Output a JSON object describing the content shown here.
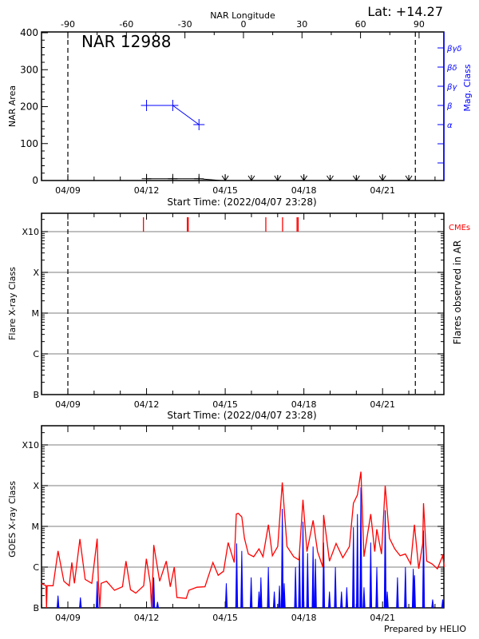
{
  "header": {
    "lat": "Lat: +14.27",
    "longitude_title": "NAR Longitude",
    "longitude_ticks": [
      "-90",
      "-60",
      "-30",
      "0",
      "30",
      "60",
      "90"
    ]
  },
  "chart_data": [
    {
      "type": "line",
      "title": "NAR 12988",
      "xlabel": "Start Time: (2022/04/07 23:28)",
      "ylabel": "NAR Area",
      "y2label": "Mag. Class",
      "ylim": [
        0,
        400
      ],
      "yticks": [
        "0",
        "100",
        "200",
        "300",
        "400"
      ],
      "xticks": [
        "04/09",
        "04/12",
        "04/15",
        "04/18",
        "04/21"
      ],
      "y2ticks": [
        "α",
        "β",
        "βγ",
        "βδ",
        "βγδ"
      ],
      "limb_lines": [
        "04/09 00:00",
        "04/22 06:00"
      ],
      "area": [
        {
          "date": "04/12 00:00",
          "value": 5
        },
        {
          "date": "04/13 00:00",
          "value": 5
        },
        {
          "date": "04/14 00:00",
          "value": 5
        },
        {
          "date": "04/14 20:00",
          "value": 0
        }
      ],
      "area_zero_arrows": [
        "04/15 00:00",
        "04/16 00:00",
        "04/17 00:00",
        "04/18 00:00",
        "04/19 00:00",
        "04/20 00:00",
        "04/21 00:00",
        "04/22 00:00"
      ],
      "mag_class": [
        {
          "date": "04/12 00:00",
          "class": "β"
        },
        {
          "date": "04/13 00:00",
          "class": "β"
        },
        {
          "date": "04/14 00:00",
          "class": "α"
        }
      ],
      "colors": {
        "area": "#000000",
        "mag_class": "#0000ff"
      }
    },
    {
      "type": "scatter",
      "xlabel": "Start Time: (2022/04/07 23:28)",
      "ylabel": "Flare X-ray Class",
      "y2label": "Flares observed in AR",
      "yticks": [
        "B",
        "C",
        "M",
        "X",
        "X10"
      ],
      "xticks": [
        "04/09",
        "04/12",
        "04/15",
        "04/18",
        "04/21"
      ],
      "limb_lines": [
        "04/09 00:00",
        "04/22 06:00"
      ],
      "cme_label": "CMEs",
      "cmes": [
        "04/11 21:10",
        "04/13 13:20",
        "04/13 14:10",
        "04/16 13:10",
        "04/17 04:30",
        "04/17 17:45",
        "04/17 18:45"
      ],
      "flares": [],
      "grid": true,
      "colors": {
        "cme": "#ff0000",
        "grid": "#999999"
      }
    },
    {
      "type": "line",
      "ylabel": "GOES X-ray Class",
      "yticks": [
        "B",
        "C",
        "M",
        "X",
        "X10"
      ],
      "xticks": [
        "04/09",
        "04/12",
        "04/15",
        "04/18",
        "04/21"
      ],
      "grid": true,
      "series": [
        {
          "color": "#ff0000",
          "points": [
            [
              "04/07 23:28",
              "B4.0"
            ],
            [
              "04/08 04:00",
              "B3.5"
            ],
            [
              "04/08 04:30",
              "B1.0"
            ],
            [
              "04/08 05:00",
              "B3.5"
            ],
            [
              "04/08 10:30",
              "B3.5"
            ],
            [
              "04/08 15:00",
              "C2.5"
            ],
            [
              "04/08 20:20",
              "B4.5"
            ],
            [
              "04/09 01:15",
              "B3.5"
            ],
            [
              "04/09 03:40",
              "C1.3"
            ],
            [
              "04/09 06:00",
              "B4.0"
            ],
            [
              "04/09 11:00",
              "C4.9"
            ],
            [
              "04/09 15:50",
              "B5.0"
            ],
            [
              "04/09 21:55",
              "B4.0"
            ],
            [
              "04/10 02:50",
              "C5.0"
            ],
            [
              "04/10 04:00",
              "B4.0"
            ],
            [
              "04/10 05:15",
              "B1.0"
            ],
            [
              "04/10 06:30",
              "B4.0"
            ],
            [
              "04/10 11:20",
              "B4.5"
            ],
            [
              "04/10 18:40",
              "B2.7"
            ],
            [
              "04/11 02:00",
              "B3.3"
            ],
            [
              "04/11 05:10",
              "C1.4"
            ],
            [
              "04/11 09:20",
              "B2.8"
            ],
            [
              "04/11 14:10",
              "B2.3"
            ],
            [
              "04/11 21:25",
              "B3.5"
            ],
            [
              "04/11 23:50",
              "C1.6"
            ],
            [
              "04/12 03:30",
              "B4.0"
            ],
            [
              "04/12 04:35",
              "B1.0"
            ],
            [
              "04/12 05:30",
              "B4.0"
            ],
            [
              "04/12 06:35",
              "C3.5"
            ],
            [
              "04/12 12:00",
              "B4.5"
            ],
            [
              "04/12 18:05",
              "C1.4"
            ],
            [
              "04/12 21:45",
              "B3.3"
            ],
            [
              "04/13 01:25",
              "C1.0"
            ],
            [
              "04/13 03:50",
              "B1.8"
            ],
            [
              "04/13 12:20",
              "B1.7"
            ],
            [
              "04/13 14:45",
              "B2.7"
            ],
            [
              "04/13 22:05",
              "B3.2"
            ],
            [
              "04/14 05:25",
              "B3.3"
            ],
            [
              "04/14 12:45",
              "C1.3"
            ],
            [
              "04/14 17:35",
              "B6.3"
            ],
            [
              "04/14 22:30",
              "B7.9"
            ],
            [
              "04/15 02:40",
              "C4.0"
            ],
            [
              "04/15 08:15",
              "C1.3"
            ],
            [
              "04/15 10:10",
              "M2.0"
            ],
            [
              "04/15 11:55",
              "M2.1"
            ],
            [
              "04/15 15:10",
              "M1.7"
            ],
            [
              "04/15 17:35",
              "C5.1"
            ],
            [
              "04/15 21:10",
              "C2.1"
            ],
            [
              "04/16 02:05",
              "C1.8"
            ],
            [
              "04/16 06:55",
              "C2.8"
            ],
            [
              "04/16 10:35",
              "C1.8"
            ],
            [
              "04/16 15:30",
              "M1.1"
            ],
            [
              "04/16 19:10",
              "C1.9"
            ],
            [
              "04/17 00:05",
              "C3.2"
            ],
            [
              "04/17 04:15",
              "X1.2"
            ],
            [
              "04/17 08:35",
              "C3.2"
            ],
            [
              "04/17 14:40",
              "C1.8"
            ],
            [
              "04/17 19:30",
              "C1.5"
            ],
            [
              "04/17 23:10",
              "M4.5"
            ],
            [
              "04/18 02:50",
              "C2.4"
            ],
            [
              "04/18 08:25",
              "M1.4"
            ],
            [
              "04/18 12:30",
              "C2.4"
            ],
            [
              "04/18 17:20",
              "C1.0"
            ],
            [
              "04/18 18:05",
              "M1.9"
            ],
            [
              "04/18 23:25",
              "C1.4"
            ],
            [
              "04/19 05:30",
              "C3.8"
            ],
            [
              "04/19 11:35",
              "C1.7"
            ],
            [
              "04/19 17:40",
              "C3.2"
            ],
            [
              "04/19 21:20",
              "M3.7"
            ],
            [
              "04/20 01:00",
              "M5.9"
            ],
            [
              "04/20 04:10",
              "X2.2"
            ],
            [
              "04/20 07:00",
              "C1.8"
            ],
            [
              "04/20 13:10",
              "M2.0"
            ],
            [
              "04/20 16:50",
              "C2.4"
            ],
            [
              "04/20 18:45",
              "C8.5"
            ],
            [
              "04/20 23:05",
              "C2.1"
            ],
            [
              "04/21 02:25",
              "X1.0"
            ],
            [
              "04/21 06:20",
              "C5.1"
            ],
            [
              "04/21 11:10",
              "C2.8"
            ],
            [
              "04/21 16:05",
              "C1.9"
            ],
            [
              "04/21 20:55",
              "C2.1"
            ],
            [
              "04/22 01:45",
              "C1.2"
            ],
            [
              "04/22 05:10",
              "M1.1"
            ],
            [
              "04/22 09:05",
              "B9.1"
            ],
            [
              "04/22 12:45",
              "C3.8"
            ],
            [
              "04/22 13:30",
              "M3.7"
            ],
            [
              "04/22 16:25",
              "C1.4"
            ],
            [
              "04/22 21:20",
              "C1.2"
            ],
            [
              "04/23 02:10",
              "B9.1"
            ],
            [
              "04/23 07:00",
              "C1.9"
            ],
            [
              "04/23 08:30",
              "C1.0"
            ]
          ]
        },
        {
          "color": "#0000ff",
          "points": [
            [
              "04/08 15:00",
              "B2.0"
            ],
            [
              "04/09 11:30",
              "B1.8"
            ],
            [
              "04/10 02:50",
              "B4.5"
            ],
            [
              "04/12 06:35",
              "B5.6"
            ],
            [
              "04/12 10:05",
              "B1.4"
            ],
            [
              "04/15 01:00",
              "B4.0"
            ],
            [
              "04/15 10:30",
              "C3.8"
            ],
            [
              "04/15 15:10",
              "C2.5"
            ],
            [
              "04/15 23:45",
              "B5.6"
            ],
            [
              "04/16 06:55",
              "B2.5"
            ],
            [
              "04/16 08:40",
              "B5.6"
            ],
            [
              "04/16 15:30",
              "C1.0"
            ],
            [
              "04/16 20:55",
              "B2.5"
            ],
            [
              "04/17 01:40",
              "B3.5"
            ],
            [
              "04/17 04:15",
              "M2.7"
            ],
            [
              "04/17 06:00",
              "B4.0"
            ],
            [
              "04/17 16:20",
              "C1.0"
            ],
            [
              "04/17 20:00",
              "C2.5"
            ],
            [
              "04/17 23:10",
              "M1.3"
            ],
            [
              "04/18 03:25",
              "C2.2"
            ],
            [
              "04/18 08:25",
              "C3.2"
            ],
            [
              "04/18 10:35",
              "C1.6"
            ],
            [
              "04/18 18:05",
              "C4.0"
            ],
            [
              "04/18 23:25",
              "B2.5"
            ],
            [
              "04/19 04:50",
              "C1.0"
            ],
            [
              "04/19 10:25",
              "B2.5"
            ],
            [
              "04/19 15:15",
              "B3.2"
            ],
            [
              "04/19 21:20",
              "C9.5"
            ],
            [
              "04/20 01:00",
              "M2.0"
            ],
            [
              "04/20 04:10",
              "M9.1"
            ],
            [
              "04/20 07:00",
              "B3.2"
            ],
            [
              "04/20 13:10",
              "C4.0"
            ],
            [
              "04/20 18:45",
              "C1.0"
            ],
            [
              "04/21 02:25",
              "M2.5"
            ],
            [
              "04/21 04:20",
              "B2.5"
            ],
            [
              "04/21 13:40",
              "B5.6"
            ],
            [
              "04/21 20:55",
              "C1.0"
            ],
            [
              "04/22 04:05",
              "B9.1"
            ],
            [
              "04/22 05:15",
              "B6.3"
            ],
            [
              "04/22 13:30",
              "C7.9"
            ],
            [
              "04/22 21:50",
              "B1.6"
            ],
            [
              "04/23 07:00",
              "B1.6"
            ]
          ]
        }
      ]
    }
  ],
  "footer": "Prepared by HELIO"
}
